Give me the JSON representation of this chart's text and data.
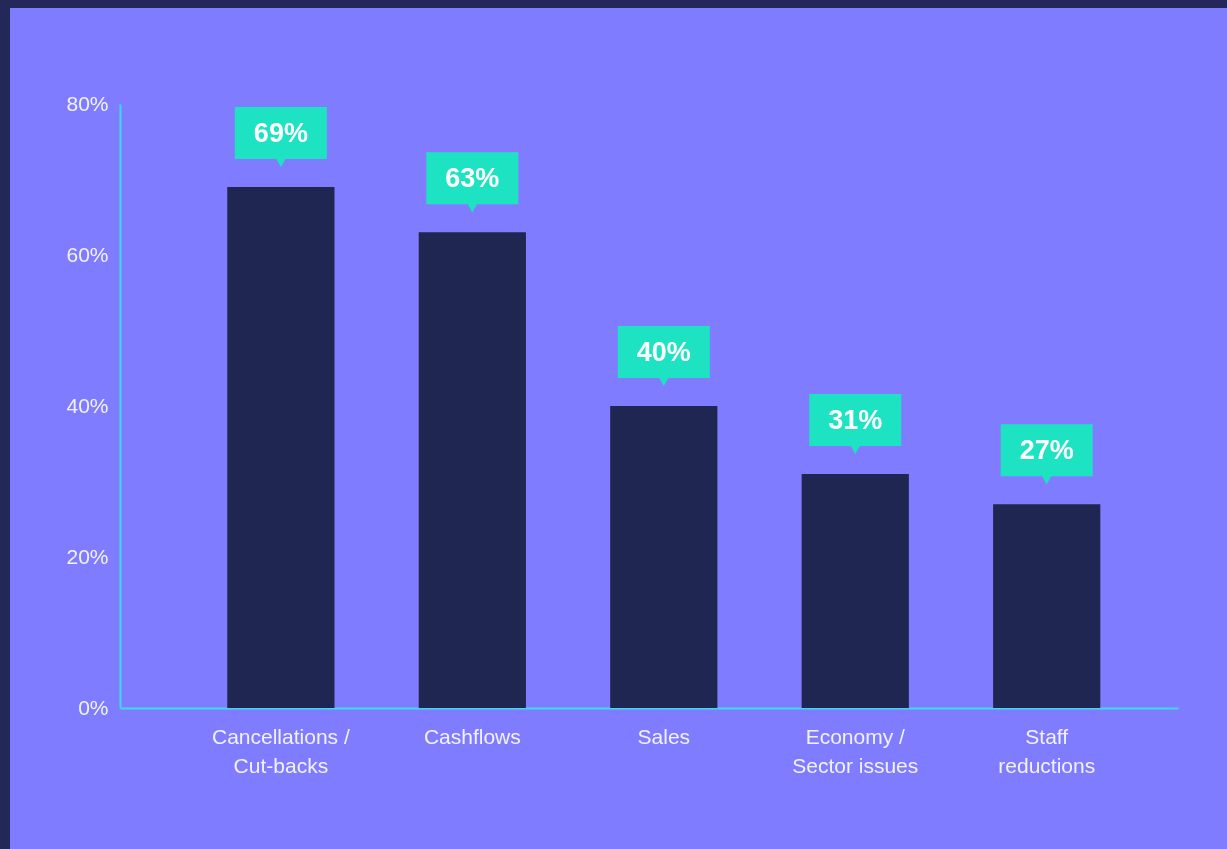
{
  "chart_data": {
    "type": "bar",
    "categories": [
      "Cancellations /\nCut-backs",
      "Cashflows",
      "Sales",
      "Economy /\nSector issues",
      "Staff\nreductions"
    ],
    "values": [
      69,
      63,
      40,
      31,
      27
    ],
    "color": "#1f2652",
    "value_labels": [
      "69%",
      "63%",
      "40%",
      "31%",
      "27%"
    ],
    "ylim": [
      0,
      80
    ],
    "yticks": [
      {
        "value": 0,
        "label": "0%"
      },
      {
        "value": 20,
        "label": "20%"
      },
      {
        "value": 40,
        "label": "40%"
      },
      {
        "value": 60,
        "label": "60%"
      },
      {
        "value": 80,
        "label": "80%"
      }
    ]
  }
}
